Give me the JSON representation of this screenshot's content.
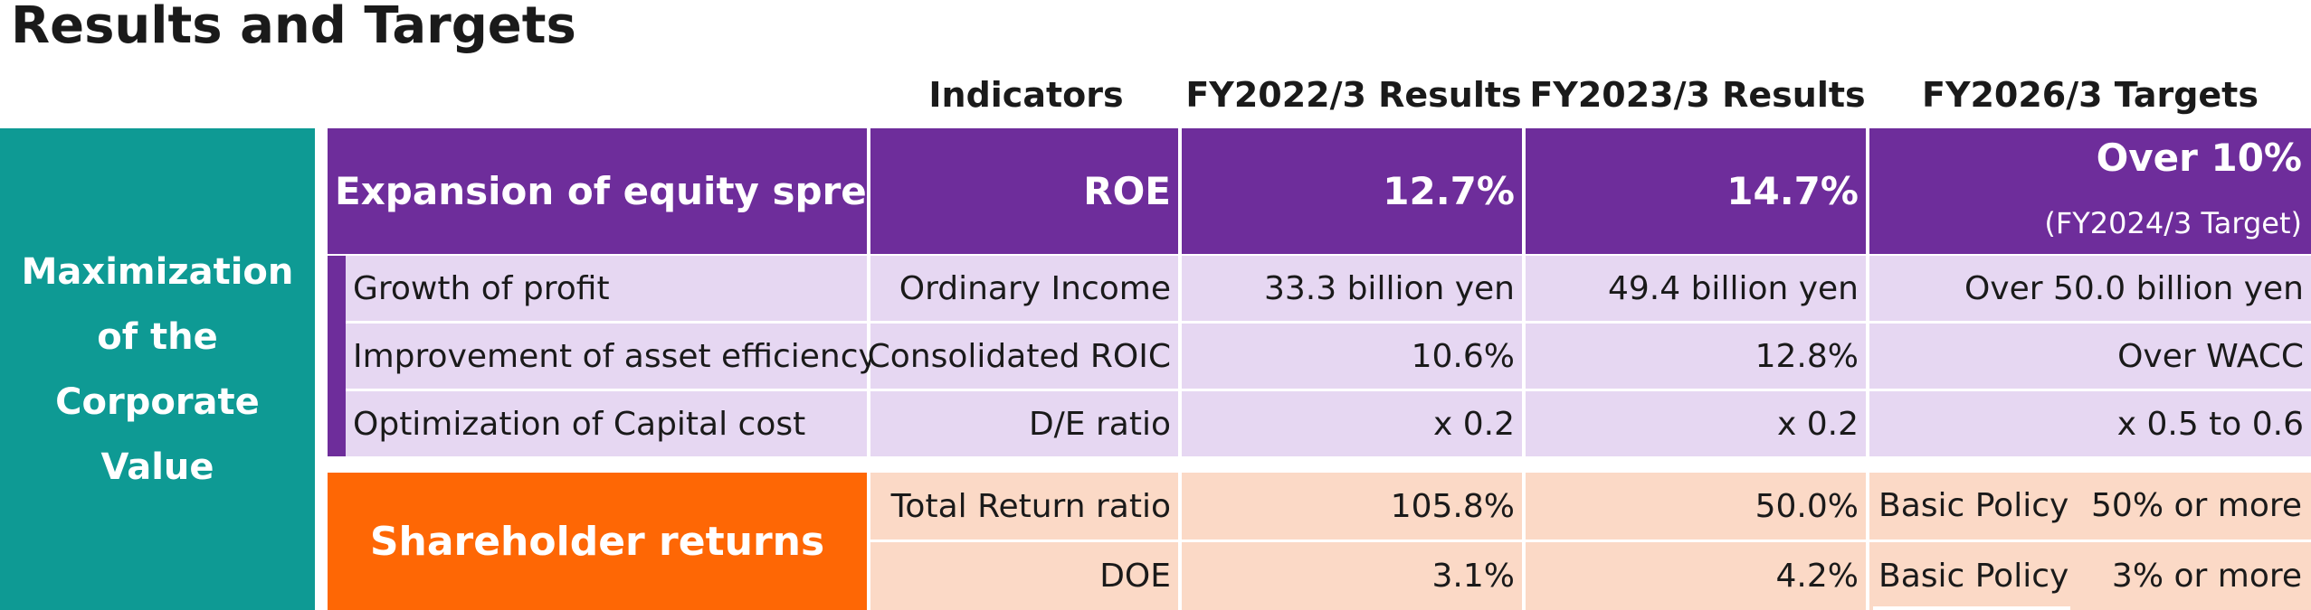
{
  "title": "Results and Targets",
  "headers": {
    "indicators": "Indicators",
    "fy2022": "FY2022/3 Results",
    "fy2023": "FY2023/3 Results",
    "fy2026": "FY2026/3 Targets"
  },
  "left_block": [
    "Maximization",
    "of the",
    "Corporate",
    "Value"
  ],
  "equity": {
    "label": "Expansion of equity spread",
    "indicator": "ROE",
    "fy2022": "12.7%",
    "fy2023": "14.7%",
    "fy2026": "Over 10%",
    "fy2026_note": "(FY2024/3 Target)"
  },
  "rows": [
    {
      "label": "Growth of profit",
      "indicator": "Ordinary Income",
      "fy2022": "33.3 billion yen",
      "fy2023": "49.4  billion yen",
      "fy2026": "Over 50.0 billion yen"
    },
    {
      "label": "Improvement of asset efficiency",
      "indicator": "Consolidated ROIC",
      "fy2022": "10.6%",
      "fy2023": "12.8%",
      "fy2026": "Over WACC"
    },
    {
      "label": "Optimization of Capital cost",
      "indicator": "D/E ratio",
      "fy2022": "x 0.2",
      "fy2023": "x 0.2",
      "fy2026": "x 0.5 to 0.6"
    }
  ],
  "shareholder": {
    "label": "Shareholder returns",
    "rows": [
      {
        "indicator": "Total Return ratio",
        "fy2022": "105.8%",
        "fy2023": "50.0%",
        "policy": "Basic Policy",
        "target": "50% or more"
      },
      {
        "indicator": "DOE",
        "fy2022": "3.1%",
        "fy2023": "4.2%",
        "policy": "Basic Policy",
        "target": "3% or more"
      }
    ]
  },
  "colors": {
    "teal": "#0e9a94",
    "purple": "#6e2d9b",
    "lavender": "#e6d7f2",
    "orange": "#fe6705",
    "peach": "#fbd9c6"
  }
}
